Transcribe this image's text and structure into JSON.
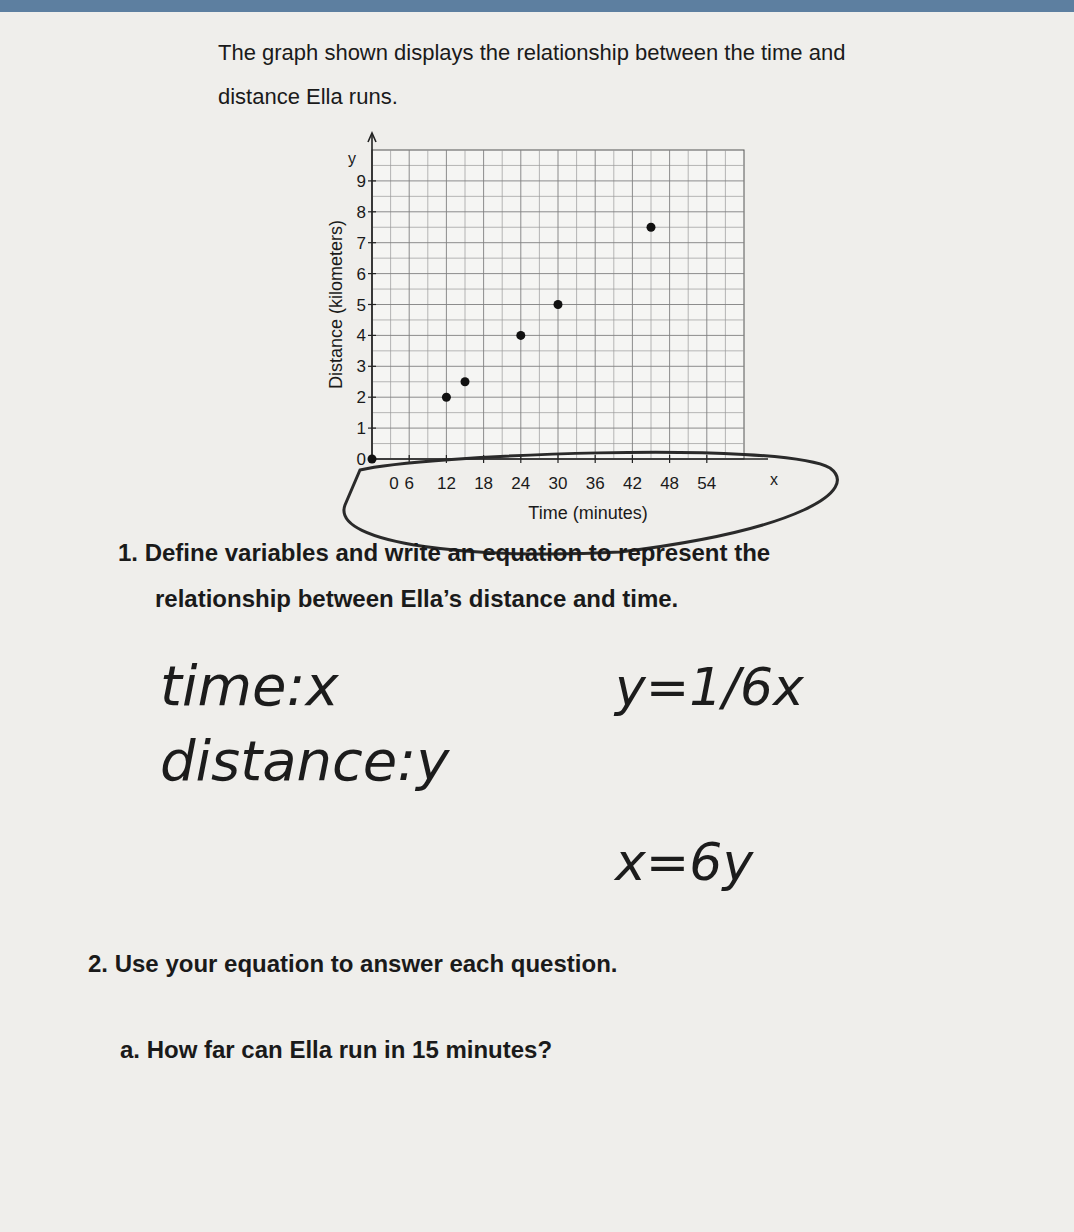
{
  "document": {
    "intro": [
      "The graph shown displays the relationship between the time and",
      "distance Ella runs."
    ],
    "question_1": [
      "1. Define variables and write an equation to represent the",
      "relationship between Ella’s distance and time."
    ],
    "question_2": "2. Use your equation to answer each question.",
    "question_2a": "a. How far can Ella run in 15 minutes?",
    "handwriting": [
      "time:x",
      "distance:y",
      "y=1/6x",
      "x=6y"
    ]
  },
  "chart_data": {
    "type": "scatter",
    "x_label": "Time (minutes)",
    "y_label": "Distance (kilometers)",
    "x_axis_letter": "x",
    "y_axis_letter": "y",
    "x": [
      0,
      12,
      15,
      24,
      30,
      45
    ],
    "values": [
      0,
      2,
      2.5,
      4,
      5,
      7.5
    ],
    "color": "#111111",
    "marker": "circle",
    "xlim": [
      0,
      60
    ],
    "ylim": [
      0,
      10
    ],
    "xticks": [
      0,
      6,
      12,
      18,
      24,
      30,
      36,
      42,
      48,
      54
    ],
    "yticks": [
      0,
      1,
      2,
      3,
      4,
      5,
      6,
      7,
      8,
      9
    ],
    "grid": true
  }
}
